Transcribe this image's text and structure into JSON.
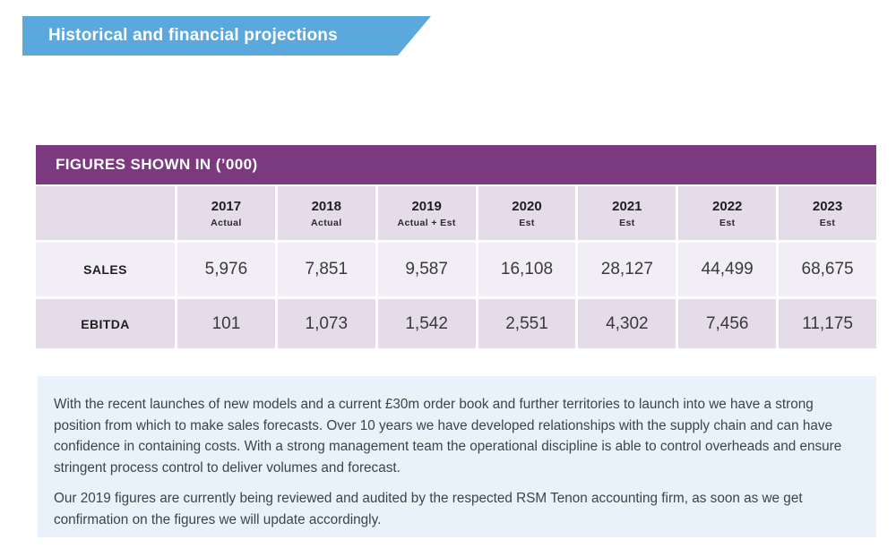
{
  "banner": {
    "title": "Historical and financial projections"
  },
  "table": {
    "title": "FIGURES SHOWN IN (’000)",
    "columns": [
      {
        "year": "2017",
        "type": "Actual"
      },
      {
        "year": "2018",
        "type": "Actual"
      },
      {
        "year": "2019",
        "type": "Actual + Est"
      },
      {
        "year": "2020",
        "type": "Est"
      },
      {
        "year": "2021",
        "type": "Est"
      },
      {
        "year": "2022",
        "type": "Est"
      },
      {
        "year": "2023",
        "type": "Est"
      }
    ],
    "rows": [
      {
        "label": "SALES",
        "values": [
          "5,976",
          "7,851",
          "9,587",
          "16,108",
          "28,127",
          "44,499",
          "68,675"
        ]
      },
      {
        "label": "EBITDA",
        "values": [
          "101",
          "1,073",
          "1,542",
          "2,551",
          "4,302",
          "7,456",
          "11,175"
        ]
      }
    ]
  },
  "notes": {
    "paragraph1": "With the recent launches of new models and a current £30m order book and further territories to launch into we have a strong position from which to make sales forecasts. Over 10 years we have developed relationships with the supply chain and can have confidence in containing costs. With a strong management team the operational discipline is able to control overheads and ensure stringent process control to deliver volumes and forecast.",
    "paragraph2": "Our 2019 figures are currently being reviewed and audited by the respected RSM Tenon accounting firm, as soon as we get confirmation on the figures we will update accordingly."
  },
  "colors": {
    "banner_blue": "#5BA8DC",
    "header_purple": "#7B3A7F",
    "row_light_purple": "#E5DCEA",
    "row_lighter_purple": "#F2EEF6",
    "note_background": "#E9F2FB",
    "text_dark": "#3E4347"
  }
}
